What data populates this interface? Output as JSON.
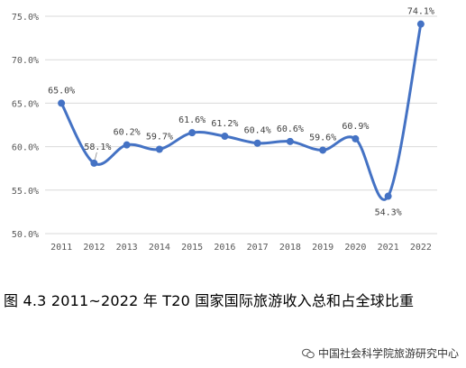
{
  "chart_data": {
    "type": "line",
    "x": [
      "2011",
      "2012",
      "2013",
      "2014",
      "2015",
      "2016",
      "2017",
      "2018",
      "2019",
      "2020",
      "2021",
      "2022"
    ],
    "series": [
      {
        "values": [
          65.0,
          58.1,
          60.2,
          59.7,
          61.6,
          61.2,
          60.4,
          60.6,
          59.6,
          60.9,
          54.3,
          74.1
        ],
        "labels": [
          "65.0%",
          "58.1%",
          "60.2%",
          "59.7%",
          "61.6%",
          "61.2%",
          "60.4%",
          "60.6%",
          "59.6%",
          "60.9%",
          "54.3%",
          "74.1%"
        ]
      }
    ],
    "yticks": [
      "50.0%",
      "55.0%",
      "60.0%",
      "65.0%",
      "70.0%",
      "75.0%"
    ],
    "ytick_values": [
      50,
      55,
      60,
      65,
      70,
      75
    ],
    "ylim": [
      50,
      75
    ],
    "grid": true,
    "line_color": "#4472C4",
    "grid_color": "#D9D9D9",
    "title": "",
    "xlabel": "",
    "ylabel": ""
  },
  "caption": "图 4.3   2011~2022 年 T20 国家国际旅游收入总和占全球比重",
  "watermark": {
    "icon": "wechat-icon",
    "text": "中国社会科学院旅游研究中心"
  }
}
